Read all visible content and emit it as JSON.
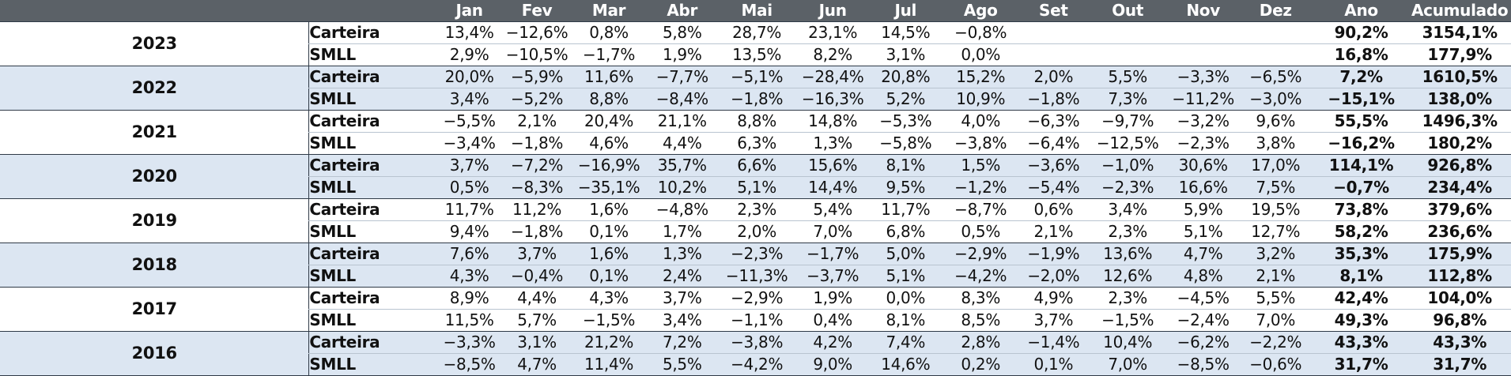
{
  "headers": [
    "",
    "",
    "Jan",
    "Fev",
    "Mar",
    "Abr",
    "Mai",
    "Jun",
    "Jul",
    "Ago",
    "Set",
    "Out",
    "Nov",
    "Dez",
    "Ano",
    "Acumulado"
  ],
  "colors": {
    "header_bg": "#5b6167",
    "band_bg": "#dce6f2",
    "rule": "#2f3a47"
  },
  "years": [
    {
      "year": "2023",
      "rows": [
        {
          "label": "Carteira",
          "months": [
            "13,4%",
            "−12,6%",
            "0,8%",
            "5,8%",
            "28,7%",
            "23,1%",
            "14,5%",
            "−0,8%",
            "",
            "",
            "",
            ""
          ],
          "ano": "90,2%",
          "acumulado": "3154,1%"
        },
        {
          "label": "SMLL",
          "months": [
            "2,9%",
            "−10,5%",
            "−1,7%",
            "1,9%",
            "13,5%",
            "8,2%",
            "3,1%",
            "0,0%",
            "",
            "",
            "",
            ""
          ],
          "ano": "16,8%",
          "acumulado": "177,9%"
        }
      ]
    },
    {
      "year": "2022",
      "rows": [
        {
          "label": "Carteira",
          "months": [
            "20,0%",
            "−5,9%",
            "11,6%",
            "−7,7%",
            "−5,1%",
            "−28,4%",
            "20,8%",
            "15,2%",
            "2,0%",
            "5,5%",
            "−3,3%",
            "−6,5%"
          ],
          "ano": "7,2%",
          "acumulado": "1610,5%"
        },
        {
          "label": "SMLL",
          "months": [
            "3,4%",
            "−5,2%",
            "8,8%",
            "−8,4%",
            "−1,8%",
            "−16,3%",
            "5,2%",
            "10,9%",
            "−1,8%",
            "7,3%",
            "−11,2%",
            "−3,0%"
          ],
          "ano": "−15,1%",
          "acumulado": "138,0%"
        }
      ]
    },
    {
      "year": "2021",
      "rows": [
        {
          "label": "Carteira",
          "months": [
            "−5,5%",
            "2,1%",
            "20,4%",
            "21,1%",
            "8,8%",
            "14,8%",
            "−5,3%",
            "4,0%",
            "−6,3%",
            "−9,7%",
            "−3,2%",
            "9,6%"
          ],
          "ano": "55,5%",
          "acumulado": "1496,3%"
        },
        {
          "label": "SMLL",
          "months": [
            "−3,4%",
            "−1,8%",
            "4,6%",
            "4,4%",
            "6,3%",
            "1,3%",
            "−5,8%",
            "−3,8%",
            "−6,4%",
            "−12,5%",
            "−2,3%",
            "3,8%"
          ],
          "ano": "−16,2%",
          "acumulado": "180,2%"
        }
      ]
    },
    {
      "year": "2020",
      "rows": [
        {
          "label": "Carteira",
          "months": [
            "3,7%",
            "−7,2%",
            "−16,9%",
            "35,7%",
            "6,6%",
            "15,6%",
            "8,1%",
            "1,5%",
            "−3,6%",
            "−1,0%",
            "30,6%",
            "17,0%"
          ],
          "ano": "114,1%",
          "acumulado": "926,8%"
        },
        {
          "label": "SMLL",
          "months": [
            "0,5%",
            "−8,3%",
            "−35,1%",
            "10,2%",
            "5,1%",
            "14,4%",
            "9,5%",
            "−1,2%",
            "−5,4%",
            "−2,3%",
            "16,6%",
            "7,5%"
          ],
          "ano": "−0,7%",
          "acumulado": "234,4%"
        }
      ]
    },
    {
      "year": "2019",
      "rows": [
        {
          "label": "Carteira",
          "months": [
            "11,7%",
            "11,2%",
            "1,6%",
            "−4,8%",
            "2,3%",
            "5,4%",
            "11,7%",
            "−8,7%",
            "0,6%",
            "3,4%",
            "5,9%",
            "19,5%"
          ],
          "ano": "73,8%",
          "acumulado": "379,6%"
        },
        {
          "label": "SMLL",
          "months": [
            "9,4%",
            "−1,8%",
            "0,1%",
            "1,7%",
            "2,0%",
            "7,0%",
            "6,8%",
            "0,5%",
            "2,1%",
            "2,3%",
            "5,1%",
            "12,7%"
          ],
          "ano": "58,2%",
          "acumulado": "236,6%"
        }
      ]
    },
    {
      "year": "2018",
      "rows": [
        {
          "label": "Carteira",
          "months": [
            "7,6%",
            "3,7%",
            "1,6%",
            "1,3%",
            "−2,3%",
            "−1,7%",
            "5,0%",
            "−2,9%",
            "−1,9%",
            "13,6%",
            "4,7%",
            "3,2%"
          ],
          "ano": "35,3%",
          "acumulado": "175,9%"
        },
        {
          "label": "SMLL",
          "months": [
            "4,3%",
            "−0,4%",
            "0,1%",
            "2,4%",
            "−11,3%",
            "−3,7%",
            "5,1%",
            "−4,2%",
            "−2,0%",
            "12,6%",
            "4,8%",
            "2,1%"
          ],
          "ano": "8,1%",
          "acumulado": "112,8%"
        }
      ]
    },
    {
      "year": "2017",
      "rows": [
        {
          "label": "Carteira",
          "months": [
            "8,9%",
            "4,4%",
            "4,3%",
            "3,7%",
            "−2,9%",
            "1,9%",
            "0,0%",
            "8,3%",
            "4,9%",
            "2,3%",
            "−4,5%",
            "5,5%"
          ],
          "ano": "42,4%",
          "acumulado": "104,0%"
        },
        {
          "label": "SMLL",
          "months": [
            "11,5%",
            "5,7%",
            "−1,5%",
            "3,4%",
            "−1,1%",
            "0,4%",
            "8,1%",
            "8,5%",
            "3,7%",
            "−1,5%",
            "−2,4%",
            "7,0%"
          ],
          "ano": "49,3%",
          "acumulado": "96,8%"
        }
      ]
    },
    {
      "year": "2016",
      "rows": [
        {
          "label": "Carteira",
          "months": [
            "−3,3%",
            "3,1%",
            "21,2%",
            "7,2%",
            "−3,8%",
            "4,2%",
            "7,4%",
            "2,8%",
            "−1,4%",
            "10,4%",
            "−6,2%",
            "−2,2%"
          ],
          "ano": "43,3%",
          "acumulado": "43,3%"
        },
        {
          "label": "SMLL",
          "months": [
            "−8,5%",
            "4,7%",
            "11,4%",
            "5,5%",
            "−4,2%",
            "9,0%",
            "14,6%",
            "0,2%",
            "0,1%",
            "7,0%",
            "−8,5%",
            "−0,6%"
          ],
          "ano": "31,7%",
          "acumulado": "31,7%"
        }
      ]
    }
  ]
}
